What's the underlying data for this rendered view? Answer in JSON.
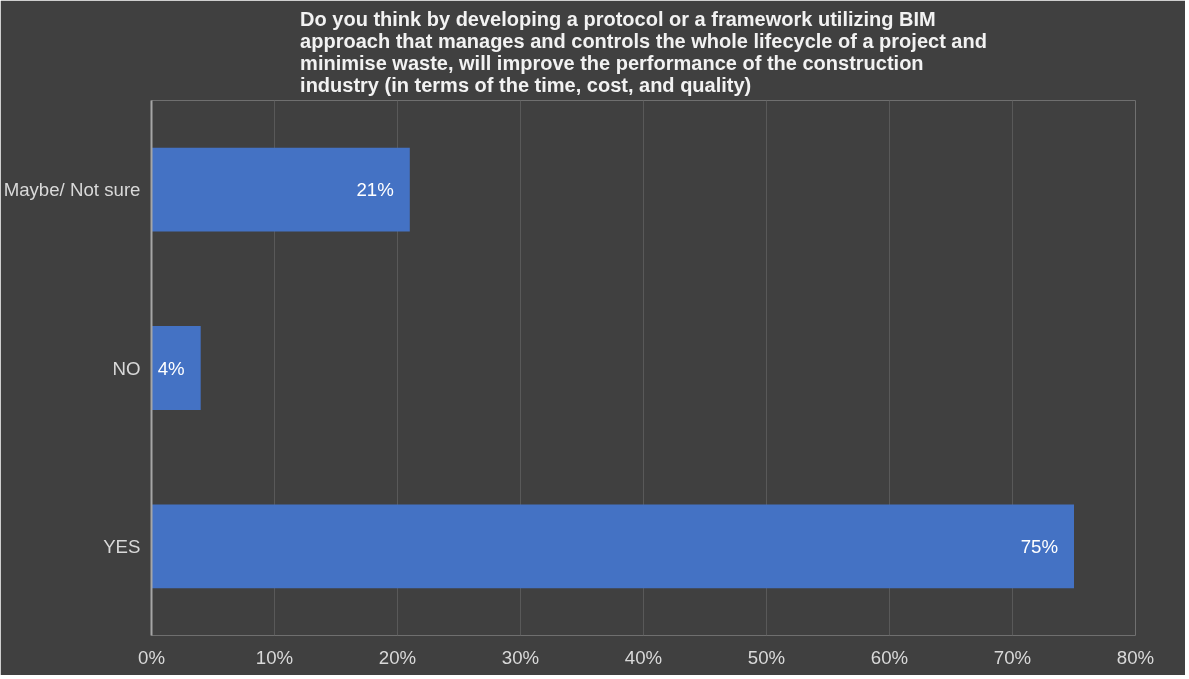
{
  "chart_data": {
    "type": "bar",
    "orientation": "horizontal",
    "title": "Do you think by developing a protocol or a framework utilizing BIM approach that manages and controls the whole lifecycle of a project and minimise waste, will improve the performance of the construction industry (in terms of the time, cost, and quality)",
    "categories": [
      "Maybe/ Not sure",
      "NO",
      "YES"
    ],
    "values": [
      21,
      4,
      75
    ],
    "value_labels": [
      "21%",
      "4%",
      "75%"
    ],
    "color": "#4472c4",
    "xlim": [
      0,
      80
    ],
    "xticks": [
      {
        "value": 0,
        "label": "0%"
      },
      {
        "value": 10,
        "label": "10%"
      },
      {
        "value": 20,
        "label": "20%"
      },
      {
        "value": 30,
        "label": "30%"
      },
      {
        "value": 40,
        "label": "40%"
      },
      {
        "value": 50,
        "label": "50%"
      },
      {
        "value": 60,
        "label": "60%"
      },
      {
        "value": 70,
        "label": "70%"
      },
      {
        "value": 80,
        "label": "80%"
      }
    ],
    "grid": "x"
  }
}
